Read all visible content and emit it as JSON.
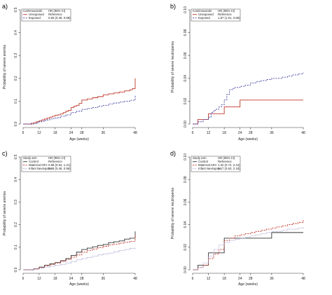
{
  "chart_data": [
    {
      "type": "line",
      "panel_letter": "a)",
      "xlabel": "Age (weeks)",
      "ylabel": "Probability of severe anemia",
      "x_ticks": [
        6,
        12,
        18,
        24,
        28,
        36,
        48
      ],
      "y_ticks": [
        "0.0",
        "0.1",
        "0.2",
        "0.3",
        "0.4",
        "0.5"
      ],
      "xlim": [
        6,
        48
      ],
      "ylim": [
        0,
        0.5
      ],
      "legend_placement": "top-left",
      "legend_header": [
        "Cotrimoxazole",
        "HR (95% CI)"
      ],
      "series": [
        {
          "name": "Unexposed",
          "hr": "Reference",
          "color": "#c0392b",
          "dash": "solid",
          "x": [
            6,
            7,
            8,
            9,
            10,
            11,
            12,
            13,
            14,
            15,
            16,
            17,
            18,
            19,
            20,
            21,
            22,
            23,
            24,
            25,
            26,
            27,
            28,
            30,
            32,
            34,
            36,
            38,
            40,
            42,
            44,
            46,
            47,
            48,
            48
          ],
          "y": [
            0,
            0,
            0,
            0.003,
            0.006,
            0.01,
            0.014,
            0.018,
            0.022,
            0.026,
            0.03,
            0.034,
            0.038,
            0.04,
            0.044,
            0.05,
            0.056,
            0.06,
            0.072,
            0.078,
            0.082,
            0.09,
            0.105,
            0.11,
            0.115,
            0.12,
            0.128,
            0.132,
            0.136,
            0.14,
            0.145,
            0.15,
            0.155,
            0.16,
            0.2
          ]
        },
        {
          "name": "Exposed",
          "hr": "0.65 (0.48, 0.88)",
          "color": "#4a4aa8",
          "dash": "dashed",
          "x": [
            6,
            8,
            10,
            11,
            12,
            13,
            14,
            15,
            16,
            17,
            18,
            19,
            20,
            22,
            24,
            26,
            28,
            30,
            32,
            34,
            36,
            38,
            40,
            42,
            44,
            46,
            48,
            48
          ],
          "y": [
            0,
            0,
            0.002,
            0.006,
            0.01,
            0.012,
            0.016,
            0.018,
            0.022,
            0.024,
            0.026,
            0.028,
            0.034,
            0.04,
            0.05,
            0.056,
            0.064,
            0.068,
            0.072,
            0.078,
            0.082,
            0.088,
            0.092,
            0.096,
            0.1,
            0.104,
            0.108,
            0.128
          ]
        }
      ]
    },
    {
      "type": "line",
      "panel_letter": "b)",
      "xlabel": "Age (weeks)",
      "ylabel": "Probability of severe neutropenia",
      "x_ticks": [
        6,
        12,
        18,
        24,
        28,
        36,
        48
      ],
      "y_ticks": [
        "0.00",
        "0.02",
        "0.04",
        "0.06",
        "0.08",
        "0.10"
      ],
      "xlim": [
        6,
        48
      ],
      "ylim": [
        0,
        0.1
      ],
      "legend_placement": "top-left",
      "legend_header": [
        "Cotrimoxazole",
        "HR (95% CI)"
      ],
      "series": [
        {
          "name": "Unexposed",
          "hr": "Reference",
          "color": "#c0392b",
          "dash": "solid",
          "x": [
            6,
            8,
            8,
            12,
            12,
            18,
            18,
            24,
            24,
            48
          ],
          "y": [
            0,
            0,
            0.004,
            0.004,
            0.009,
            0.009,
            0.015,
            0.015,
            0.021,
            0.021
          ]
        },
        {
          "name": "Exposed",
          "hr": "1.87 (1.01, 3.86)",
          "color": "#4a4aa8",
          "dash": "dashed",
          "x": [
            6,
            7,
            8,
            10,
            12,
            13,
            14,
            15,
            16,
            17,
            18,
            19,
            20,
            21,
            22,
            24,
            26,
            28,
            30,
            32,
            34,
            36,
            38,
            40,
            42,
            44,
            46,
            48
          ],
          "y": [
            0,
            0,
            0.002,
            0.004,
            0.006,
            0.01,
            0.012,
            0.013,
            0.015,
            0.017,
            0.021,
            0.026,
            0.03,
            0.031,
            0.032,
            0.033,
            0.034,
            0.036,
            0.037,
            0.038,
            0.039,
            0.04,
            0.04,
            0.041,
            0.042,
            0.043,
            0.044,
            0.045
          ]
        }
      ]
    },
    {
      "type": "line",
      "panel_letter": "c)",
      "xlabel": "Age (weeks)",
      "ylabel": "Probability of severe anemia",
      "x_ticks": [
        6,
        12,
        18,
        24,
        28,
        36,
        48
      ],
      "y_ticks": [
        "0.0",
        "0.1",
        "0.2",
        "0.3",
        "0.4",
        "0.5"
      ],
      "xlim": [
        6,
        48
      ],
      "ylim": [
        0,
        0.5
      ],
      "legend_placement": "top-left",
      "legend_header": [
        "Study arm",
        "HR (95% CI)"
      ],
      "series": [
        {
          "name": "Control",
          "hr": "Reference",
          "color": "#333333",
          "dash": "solid",
          "x": [
            6,
            8,
            10,
            12,
            14,
            16,
            18,
            20,
            22,
            24,
            26,
            28,
            30,
            32,
            34,
            36,
            38,
            40,
            42,
            44,
            46,
            48,
            48
          ],
          "y": [
            0,
            0,
            0.004,
            0.012,
            0.02,
            0.026,
            0.032,
            0.04,
            0.05,
            0.064,
            0.078,
            0.09,
            0.096,
            0.102,
            0.108,
            0.112,
            0.12,
            0.124,
            0.128,
            0.136,
            0.14,
            0.145,
            0.17
          ]
        },
        {
          "name": "Maternal ARV",
          "hr": "0.88 (0.63, 1.21)",
          "color": "#c0392b",
          "dash": "dashed",
          "x": [
            6,
            8,
            10,
            12,
            14,
            16,
            18,
            20,
            22,
            24,
            26,
            28,
            30,
            32,
            34,
            36,
            38,
            40,
            42,
            44,
            46,
            48,
            48
          ],
          "y": [
            0,
            0,
            0.004,
            0.01,
            0.018,
            0.024,
            0.03,
            0.038,
            0.046,
            0.056,
            0.066,
            0.078,
            0.086,
            0.092,
            0.098,
            0.104,
            0.11,
            0.114,
            0.118,
            0.122,
            0.126,
            0.13,
            0.155
          ]
        },
        {
          "name": "Infant Nevirapine",
          "hr": "0.68 (0.48, 0.96)",
          "color": "#8e8ec8",
          "dash": "dotted",
          "x": [
            6,
            8,
            10,
            12,
            14,
            16,
            18,
            20,
            22,
            24,
            26,
            28,
            30,
            32,
            34,
            36,
            38,
            40,
            42,
            44,
            46,
            48
          ],
          "y": [
            0,
            0,
            0.003,
            0.008,
            0.012,
            0.016,
            0.02,
            0.024,
            0.03,
            0.036,
            0.044,
            0.05,
            0.055,
            0.06,
            0.066,
            0.07,
            0.074,
            0.08,
            0.086,
            0.09,
            0.095,
            0.1
          ]
        }
      ]
    },
    {
      "type": "line",
      "panel_letter": "d)",
      "xlabel": "Age (weeks)",
      "ylabel": "Probability of severe neutropenia",
      "x_ticks": [
        6,
        12,
        18,
        24,
        28,
        36,
        48
      ],
      "y_ticks": [
        "0.00",
        "0.02",
        "0.04",
        "0.06",
        "0.08",
        "0.10"
      ],
      "xlim": [
        6,
        48
      ],
      "ylim": [
        0,
        0.1
      ],
      "legend_placement": "top-left",
      "legend_header": [
        "Study arm",
        "HR (95% CI)"
      ],
      "series": [
        {
          "name": "Control",
          "hr": "Reference",
          "color": "#333333",
          "dash": "solid",
          "x": [
            6,
            8,
            8,
            12,
            12,
            18,
            18,
            36,
            36,
            48
          ],
          "y": [
            0,
            0,
            0.004,
            0.004,
            0.015,
            0.015,
            0.028,
            0.028,
            0.033,
            0.033
          ]
        },
        {
          "name": "Maternal ARV",
          "hr": "1.32 (0.72, 2.44)",
          "color": "#c0392b",
          "dash": "dashed",
          "x": [
            6,
            8,
            10,
            12,
            14,
            16,
            18,
            20,
            22,
            24,
            26,
            28,
            30,
            32,
            34,
            36,
            38,
            40,
            42,
            44,
            46,
            48
          ],
          "y": [
            0,
            0.002,
            0.004,
            0.01,
            0.014,
            0.018,
            0.026,
            0.028,
            0.03,
            0.031,
            0.032,
            0.033,
            0.034,
            0.035,
            0.036,
            0.037,
            0.038,
            0.039,
            0.04,
            0.041,
            0.042,
            0.044
          ]
        },
        {
          "name": "Infant Nevirapine",
          "hr": "1.17 (0.63, 2.18)",
          "color": "#a0a0d0",
          "dash": "dotted",
          "x": [
            6,
            8,
            10,
            12,
            14,
            16,
            18,
            20,
            22,
            24,
            26,
            28,
            30,
            32,
            34,
            36,
            38,
            40,
            42,
            44,
            46,
            48
          ],
          "y": [
            0,
            0.002,
            0.006,
            0.012,
            0.018,
            0.022,
            0.024,
            0.026,
            0.027,
            0.028,
            0.029,
            0.03,
            0.031,
            0.032,
            0.033,
            0.034,
            0.034,
            0.035,
            0.036,
            0.036,
            0.037,
            0.038
          ]
        }
      ]
    }
  ]
}
